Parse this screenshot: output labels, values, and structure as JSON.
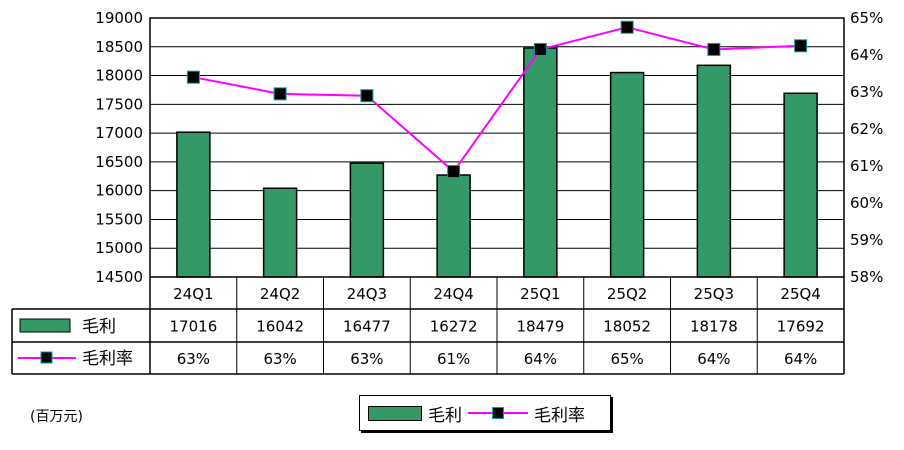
{
  "chart_data": {
    "type": "bar+line",
    "categories": [
      "24Q1",
      "24Q2",
      "24Q3",
      "24Q4",
      "25Q1",
      "25Q2",
      "25Q3",
      "25Q4"
    ],
    "series": [
      {
        "name": "毛利",
        "type": "bar",
        "axis": "left",
        "color": "#339966",
        "values": [
          17016,
          16042,
          16477,
          16272,
          18479,
          18052,
          18178,
          17692
        ],
        "labels": [
          "17016",
          "16042",
          "16477",
          "16272",
          "18479",
          "18052",
          "18178",
          "17692"
        ]
      },
      {
        "name": "毛利率",
        "type": "line",
        "axis": "right",
        "color": "#ff00ff",
        "marker_color": "#000000",
        "values": [
          63.4,
          62.95,
          62.9,
          60.85,
          64.15,
          64.75,
          64.15,
          64.25
        ],
        "labels": [
          "63%",
          "63%",
          "63%",
          "61%",
          "64%",
          "65%",
          "64%",
          "64%"
        ]
      }
    ],
    "y_left": {
      "min": 14500,
      "max": 19000,
      "step": 500,
      "ticks": [
        "14500",
        "15000",
        "15500",
        "16000",
        "16500",
        "17000",
        "17500",
        "18000",
        "18500",
        "19000"
      ]
    },
    "y_right": {
      "min": 58,
      "max": 65,
      "step": 1,
      "ticks": [
        "58%",
        "59%",
        "60%",
        "61%",
        "62%",
        "63%",
        "64%",
        "65%"
      ]
    },
    "grid": true,
    "legend_position": "bottom"
  },
  "unit_label": "(百万元)",
  "legend": {
    "bar_label": "毛利",
    "line_label": "毛利率"
  }
}
